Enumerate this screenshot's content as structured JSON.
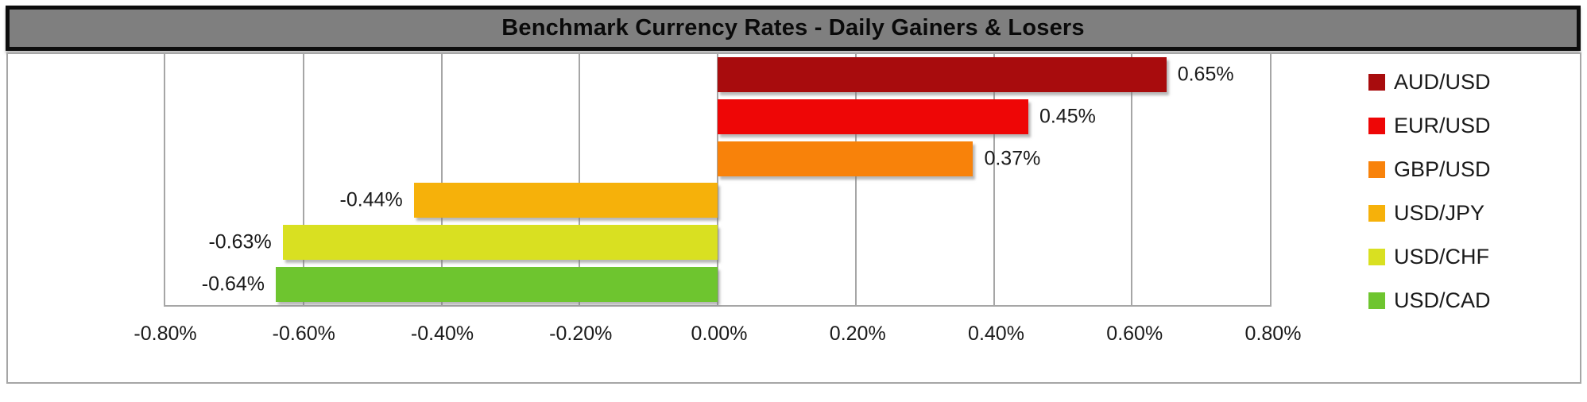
{
  "title": "Benchmark Currency Rates - Daily Gainers & Losers",
  "colors": {
    "title_bar_bg": "#7f7f7f",
    "title_bar_border": "#0d0d0d",
    "body_border": "#a6a6a6",
    "gridline": "#a6a6a6",
    "label_text": "#1a1a1a"
  },
  "chart_data": {
    "type": "bar",
    "orientation": "horizontal",
    "title": "Benchmark Currency Rates - Daily Gainers & Losers",
    "grid": true,
    "legend_position": "right",
    "x_axis": {
      "min": -0.8,
      "max": 0.8,
      "step": 0.2,
      "tick_labels": [
        "-0.80%",
        "-0.60%",
        "-0.40%",
        "-0.20%",
        "0.00%",
        "0.20%",
        "0.40%",
        "0.60%",
        "0.80%"
      ]
    },
    "series": [
      {
        "name": "AUD/USD",
        "value": 0.65,
        "label": "0.65%",
        "color": "#a80c0d"
      },
      {
        "name": "EUR/USD",
        "value": 0.45,
        "label": "0.45%",
        "color": "#ee0606"
      },
      {
        "name": "GBP/USD",
        "value": 0.37,
        "label": "0.37%",
        "color": "#f8820a"
      },
      {
        "name": "USD/JPY",
        "value": -0.44,
        "label": "-0.44%",
        "color": "#f6b10a"
      },
      {
        "name": "USD/CHF",
        "value": -0.63,
        "label": "-0.63%",
        "color": "#d9e021"
      },
      {
        "name": "USD/CAD",
        "value": -0.64,
        "label": "-0.64%",
        "color": "#6ec52f"
      }
    ]
  }
}
